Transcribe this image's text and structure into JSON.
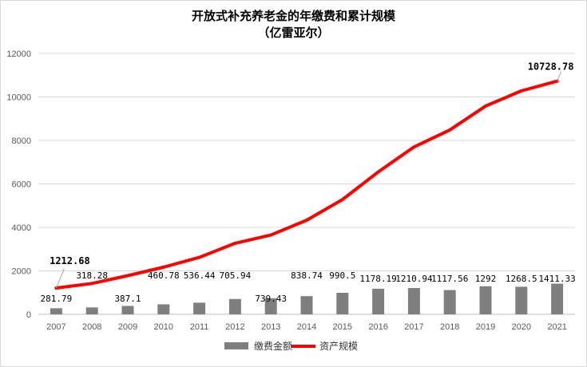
{
  "chart_data": {
    "type": "bar+line",
    "title": "开放式补充养老金的年缴费和累计规模",
    "subtitle": "（亿雷亚尔）",
    "categories": [
      "2007",
      "2008",
      "2009",
      "2010",
      "2011",
      "2012",
      "2013",
      "2014",
      "2015",
      "2016",
      "2017",
      "2018",
      "2019",
      "2020",
      "2021"
    ],
    "series": [
      {
        "name": "缴费金额",
        "kind": "bar",
        "color": "#7f7f7f",
        "values": [
          281.79,
          318.28,
          387.1,
          460.78,
          536.44,
          705.94,
          739.43,
          838.74,
          990.5,
          1178.19,
          1210.94,
          1117.56,
          1292,
          1268.5,
          1411.33
        ],
        "labels": [
          "281.79",
          "318.28",
          "387.1",
          "460.78",
          "536.44",
          "705.94",
          "739.43",
          "838.74",
          "990.5",
          "1178.19",
          "1210.94",
          "1117.56",
          "1292",
          "1268.5",
          "1411.33"
        ]
      },
      {
        "name": "资产规模",
        "kind": "line",
        "color": "#ff0000",
        "values": [
          1212.68,
          1420,
          1780,
          2170,
          2620,
          3270,
          3650,
          4330,
          5280,
          6550,
          7700,
          8480,
          9580,
          10280,
          10728.78
        ],
        "labels": [
          "1212.68",
          "",
          "",
          "",
          "",
          "",
          "",
          "",
          "",
          "",
          "",
          "",
          "",
          "",
          "10728.78"
        ]
      }
    ],
    "ylim": [
      0,
      12000
    ],
    "yticks": [
      "0",
      "2000",
      "4000",
      "6000",
      "8000",
      "10000",
      "12000"
    ],
    "grid": true,
    "legend_position": "bottom"
  }
}
